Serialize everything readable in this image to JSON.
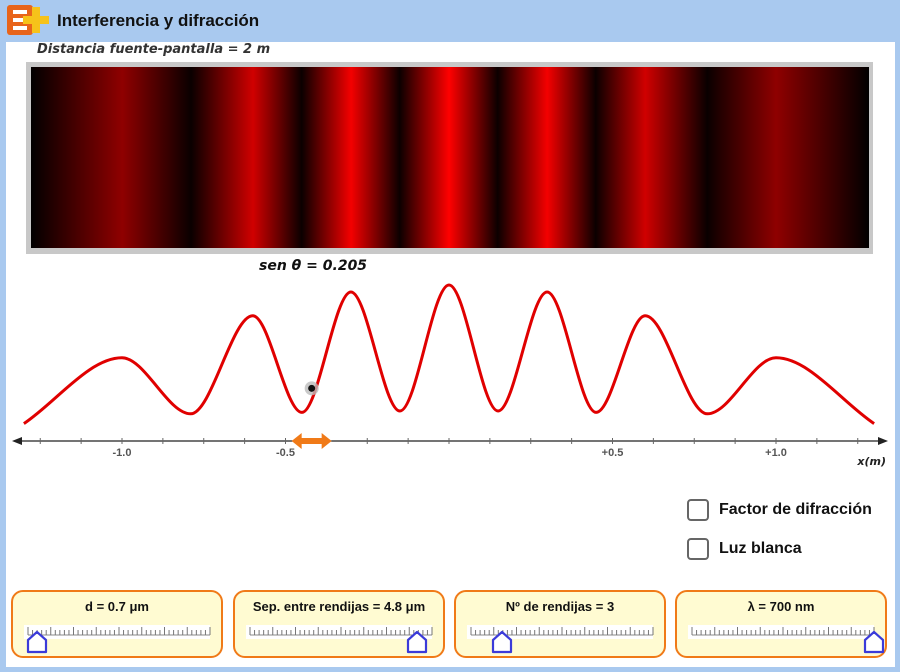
{
  "app": {
    "title": "Interferencia y difracción"
  },
  "screen": {
    "distance_label": "Distancia fuente-pantalla = 2 m",
    "sin_theta_label": "sen θ = 0.205"
  },
  "chart_data": {
    "type": "line",
    "xlabel": "x(m)",
    "tick_labels": [
      "-1.0",
      "-0.5",
      "+0.5",
      "+1.0"
    ],
    "tick_values": [
      -1.0,
      -0.5,
      0.5,
      1.0
    ],
    "xlim": [
      -1.3,
      1.3
    ],
    "series": [
      {
        "color": "#e00000",
        "x": [
          -1.3,
          -1.0,
          -0.79,
          -0.6,
          -0.45,
          -0.3,
          -0.15,
          0.0,
          0.15,
          0.3,
          0.45,
          0.6,
          0.79,
          1.0,
          1.3
        ],
        "y": [
          0.01,
          0.48,
          0.08,
          0.78,
          0.09,
          0.95,
          0.1,
          1.0,
          0.1,
          0.95,
          0.09,
          0.78,
          0.08,
          0.48,
          0.01
        ]
      }
    ],
    "probe_x": -0.42
  },
  "options": {
    "diffraction_label": "Factor de difracción",
    "white_light_label": "Luz blanca",
    "diffraction_checked": false,
    "white_light_checked": false
  },
  "sliders": [
    {
      "label": "d = 0.7 μm",
      "value": 0.05
    },
    {
      "label": "Sep. entre rendijas = 4.8 μm",
      "value": 0.92
    },
    {
      "label": "Nº de rendijas = 3",
      "value": 0.17
    },
    {
      "label": "λ = 700 nm",
      "value": 1.0
    }
  ],
  "colors": {
    "accent": "#f07a18",
    "curve": "#e00000",
    "slider_bg": "#fffbd2",
    "thumb": "#3b3bd9"
  }
}
